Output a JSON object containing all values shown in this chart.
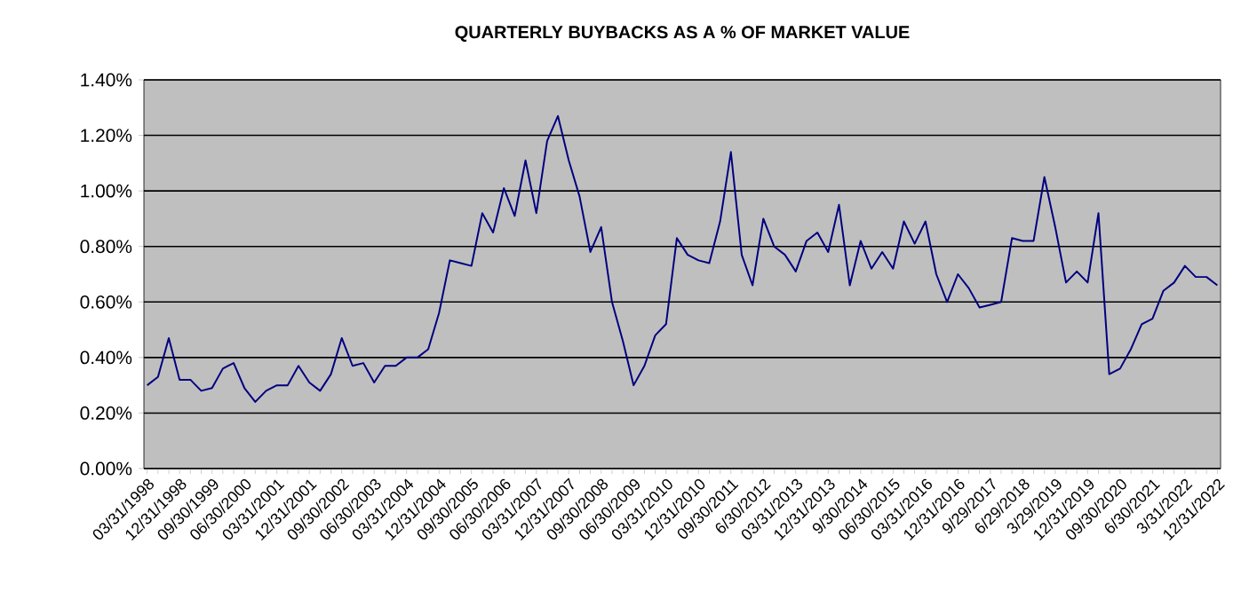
{
  "chart_data": {
    "type": "line",
    "title": "QUARTERLY BUYBACKS AS A % OF MARKET VALUE",
    "categories": [
      "03/31/1998",
      null,
      null,
      "12/31/1998",
      null,
      null,
      "09/30/1999",
      null,
      null,
      "06/30/2000",
      null,
      null,
      "03/31/2001",
      null,
      null,
      "12/31/2001",
      null,
      null,
      "09/30/2002",
      null,
      null,
      "06/30/2003",
      null,
      null,
      "03/31/2004",
      null,
      null,
      "12/31/2004",
      null,
      null,
      "09/30/2005",
      null,
      null,
      "06/30/2006",
      null,
      null,
      "03/31/2007",
      null,
      null,
      "12/31/2007",
      null,
      null,
      "09/30/2008",
      null,
      null,
      "06/30/2009",
      null,
      null,
      "03/31/2010",
      null,
      null,
      "12/31/2010",
      null,
      null,
      "09/30/2011",
      null,
      null,
      "6/30/2012",
      null,
      null,
      "03/31/2013",
      null,
      null,
      "12/31/2013",
      null,
      null,
      "9/30/2014",
      null,
      null,
      "06/30/2015",
      null,
      null,
      "03/31/2016",
      null,
      null,
      "12/31/2016",
      null,
      null,
      "9/29/2017",
      null,
      null,
      "6/29/2018",
      null,
      null,
      "3/29/2019",
      null,
      null,
      "12/31/2019",
      null,
      null,
      "09/30/2020",
      null,
      null,
      "6/30/2021",
      null,
      null,
      "3/31/2022",
      null,
      null,
      "12/31/2022"
    ],
    "series": [
      {
        "color": "#000080",
        "values": [
          0.3,
          0.33,
          0.47,
          0.32,
          0.32,
          0.28,
          0.29,
          0.36,
          0.38,
          0.29,
          0.24,
          0.28,
          0.3,
          0.3,
          0.37,
          0.31,
          0.28,
          0.34,
          0.47,
          0.37,
          0.38,
          0.31,
          0.37,
          0.37,
          0.4,
          0.4,
          0.43,
          0.56,
          0.75,
          0.74,
          0.73,
          0.92,
          0.85,
          1.01,
          0.91,
          1.11,
          0.92,
          1.18,
          1.27,
          1.11,
          0.98,
          0.78,
          0.87,
          0.6,
          0.46,
          0.3,
          0.37,
          0.48,
          0.52,
          0.83,
          0.77,
          0.75,
          0.74,
          0.89,
          1.14,
          0.77,
          0.66,
          0.9,
          0.8,
          0.77,
          0.71,
          0.82,
          0.85,
          0.78,
          0.95,
          0.66,
          0.82,
          0.72,
          0.78,
          0.72,
          0.89,
          0.81,
          0.89,
          0.7,
          0.6,
          0.7,
          0.65,
          0.58,
          0.59,
          0.6,
          0.83,
          0.82,
          0.82,
          1.05,
          0.87,
          0.67,
          0.71,
          0.67,
          0.92,
          0.34,
          0.36,
          0.43,
          0.52,
          0.54,
          0.64,
          0.67,
          0.73,
          0.69,
          0.69,
          0.66
        ]
      }
    ],
    "ylim": [
      0,
      1.4
    ],
    "yticks": [
      {
        "value": 0,
        "label": "0.00%"
      },
      {
        "value": 0.2,
        "label": "0.20%"
      },
      {
        "value": 0.4,
        "label": "0.40%"
      },
      {
        "value": 0.6,
        "label": "0.60%"
      },
      {
        "value": 0.8,
        "label": "0.80%"
      },
      {
        "value": 1.0,
        "label": "1.00%"
      },
      {
        "value": 1.2,
        "label": "1.20%"
      },
      {
        "value": 1.4,
        "label": "1.40%"
      }
    ],
    "grid": "y",
    "marker": "none",
    "line_style": "solid"
  }
}
